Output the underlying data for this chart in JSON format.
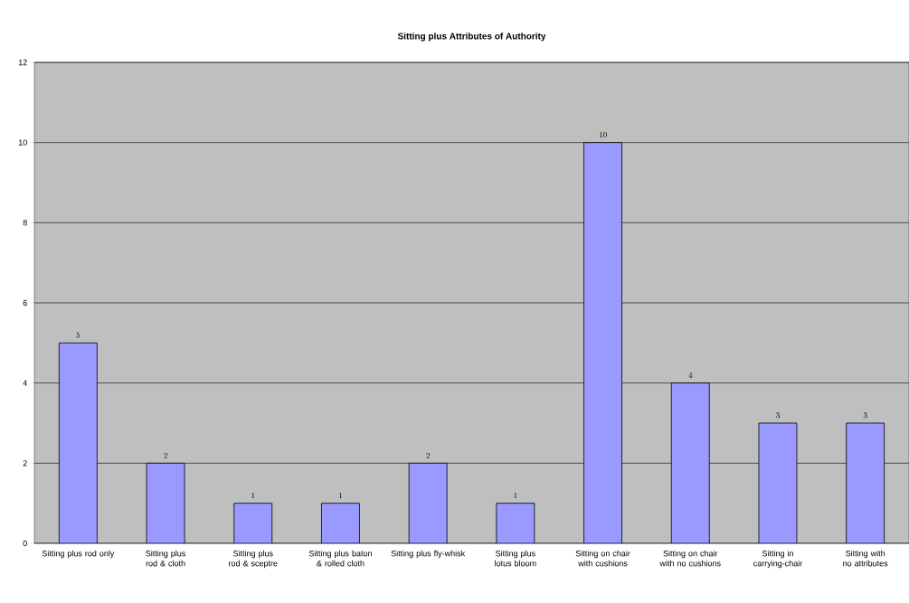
{
  "chart_data": {
    "type": "bar",
    "title": "Sitting plus Attributes of Authority",
    "categories": [
      "Sitting plus rod only",
      "Sitting plus rod & cloth",
      "Sitting plus rod & sceptre",
      "Sitting plus baton & rolled cloth",
      "Sitting plus fly-whisk",
      "Sitting plus lotus bloom",
      "Sitting on chair with cushions",
      "Sitting on chair with no cushions",
      "Sitting in carrying-chair",
      "Sitting with no attributes"
    ],
    "values": [
      5,
      2,
      1,
      1,
      2,
      1,
      10,
      4,
      3,
      3
    ],
    "color": "#9999ff",
    "ylim": [
      0,
      12
    ],
    "yticks": [
      0,
      2,
      4,
      6,
      8,
      10,
      12
    ],
    "grid": "y",
    "data_labels": true
  }
}
